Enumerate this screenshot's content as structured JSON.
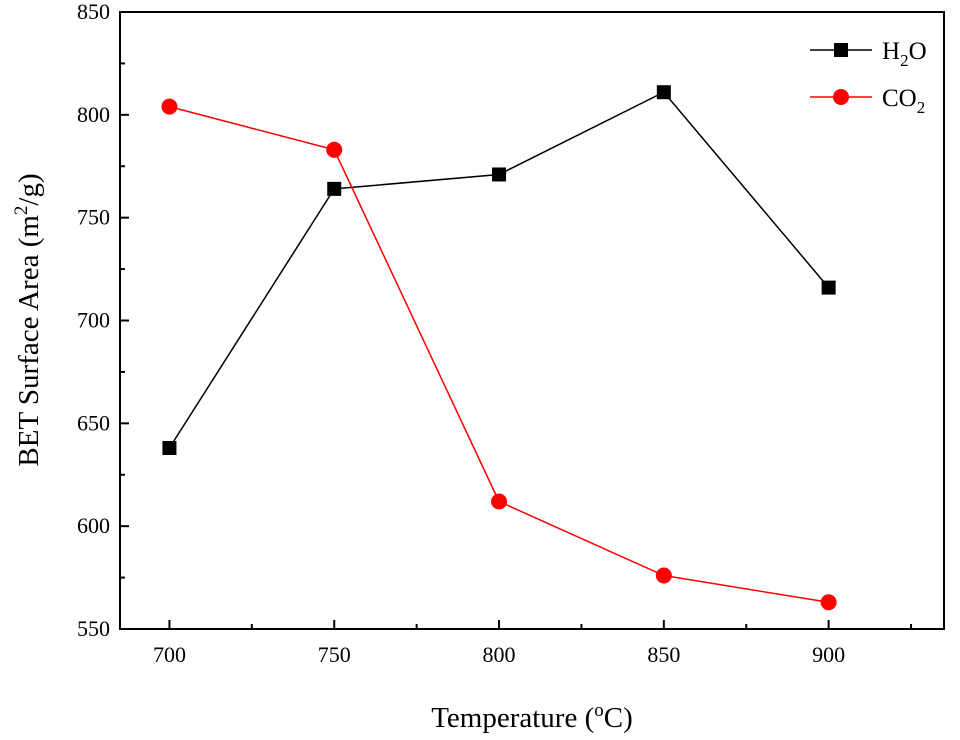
{
  "chart_data": {
    "type": "line",
    "x": [
      700,
      750,
      800,
      850,
      900
    ],
    "xlim": [
      685,
      935
    ],
    "ylim": [
      550,
      850
    ],
    "xticks": [
      "700",
      "750",
      "800",
      "850",
      "900"
    ],
    "yticks": [
      "550",
      "600",
      "650",
      "700",
      "750",
      "800",
      "850"
    ],
    "xlabel": {
      "main": "Temperature (",
      "sup": "o",
      "tail": "C)"
    },
    "ylabel": {
      "main": "BET Surface Area (m",
      "sup": "2",
      "tail": "/g)"
    },
    "grid": false,
    "legend_position": "top-right",
    "series": [
      {
        "name": "H2O",
        "legend": {
          "main": "H",
          "sub": "2",
          "tail": "O"
        },
        "color": "#000000",
        "marker": "square",
        "values": [
          638,
          764,
          771,
          811,
          716
        ]
      },
      {
        "name": "CO2",
        "legend": {
          "main": "CO",
          "sub": "2",
          "tail": ""
        },
        "color": "#ff0000",
        "marker": "circle",
        "values": [
          804,
          783,
          612,
          576,
          563
        ]
      }
    ]
  }
}
